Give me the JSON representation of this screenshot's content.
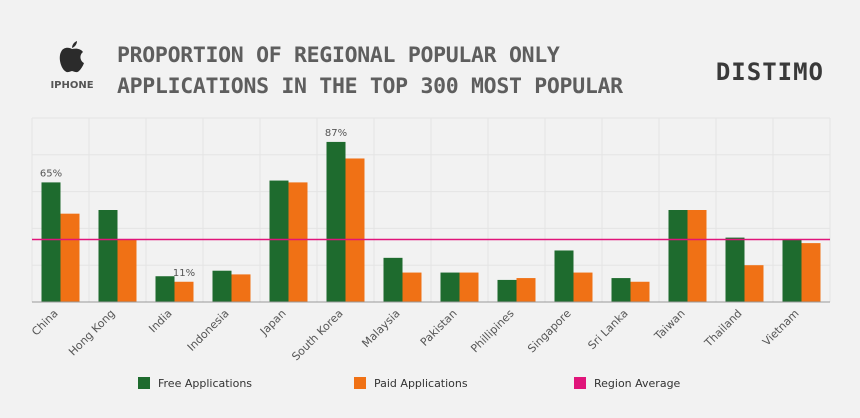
{
  "header": {
    "device_label": "IPHONE",
    "title_line1": "PROPORTION OF REGIONAL POPULAR ONLY",
    "title_line2": "APPLICATIONS IN THE TOP 300 MOST POPULAR",
    "brand": "DISTIMO"
  },
  "icons": {
    "device": "apple-logo-icon"
  },
  "colors": {
    "free": "#1e6b2e",
    "paid": "#f07115",
    "average": "#e0157a",
    "grid": "#e4e4e4",
    "axis": "#999999"
  },
  "chart_data": {
    "type": "bar",
    "title": "Proportion of regional popular only applications in the top 300 most popular",
    "xlabel": "",
    "ylabel": "",
    "ylim": [
      0,
      100
    ],
    "grid": true,
    "legend_position": "bottom",
    "categories": [
      "China",
      "Hong Kong",
      "India",
      "Indonesia",
      "Japan",
      "South Korea",
      "Malaysia",
      "Pakistan",
      "Phillipines",
      "Singapore",
      "Sri Lanka",
      "Taiwan",
      "Thailand",
      "Vietnam"
    ],
    "series": [
      {
        "name": "Free Applications",
        "values": [
          65,
          50,
          14,
          17,
          66,
          87,
          24,
          16,
          12,
          28,
          13,
          50,
          35,
          34
        ]
      },
      {
        "name": "Paid Applications",
        "values": [
          48,
          34,
          11,
          15,
          65,
          78,
          16,
          16,
          13,
          16,
          11,
          50,
          20,
          32
        ]
      }
    ],
    "average": {
      "name": "Region Average",
      "value": 34
    },
    "annotations": [
      {
        "category": "China",
        "series": 0,
        "text": "65%"
      },
      {
        "category": "India",
        "series": 1,
        "text": "11%"
      },
      {
        "category": "South Korea",
        "series": 0,
        "text": "87%"
      }
    ]
  }
}
